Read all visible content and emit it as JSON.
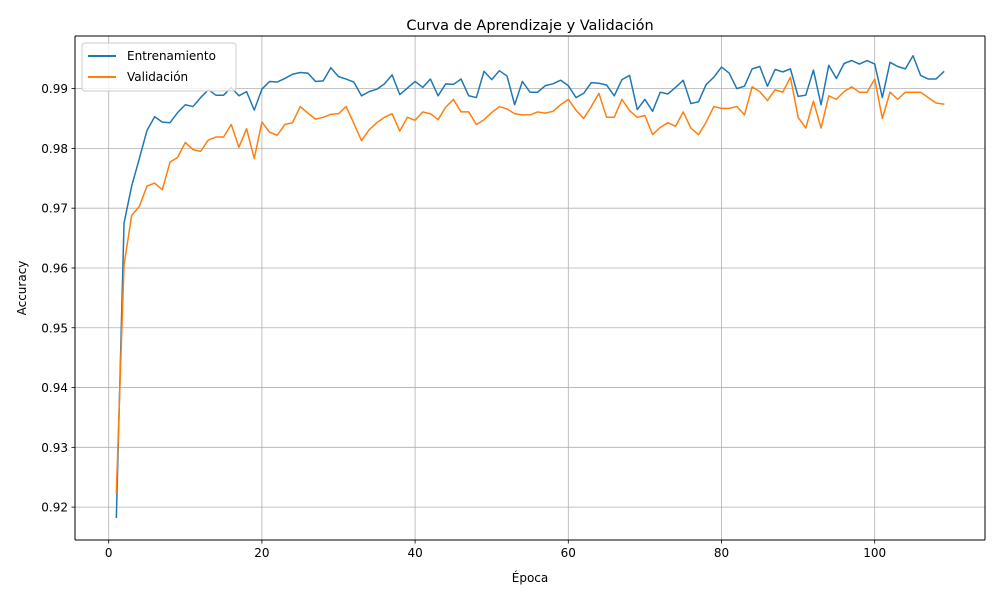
{
  "chart_data": {
    "type": "line",
    "title": "Curva de Aprendizaje y Validación",
    "xlabel": "Época",
    "ylabel": "Accuracy",
    "xlim": [
      -4.4,
      114.4
    ],
    "ylim": [
      0.9145,
      0.9988
    ],
    "xticks": [
      0,
      20,
      40,
      60,
      80,
      100
    ],
    "yticks": [
      0.92,
      0.93,
      0.94,
      0.95,
      0.96,
      0.97,
      0.98,
      0.99
    ],
    "ytick_labels": [
      "0.92",
      "0.93",
      "0.94",
      "0.95",
      "0.96",
      "0.97",
      "0.98",
      "0.99"
    ],
    "grid": true,
    "legend_position": "top-left",
    "x": [
      1,
      2,
      3,
      4,
      5,
      6,
      7,
      8,
      9,
      10,
      11,
      12,
      13,
      14,
      15,
      16,
      17,
      18,
      19,
      20,
      21,
      22,
      23,
      24,
      25,
      26,
      27,
      28,
      29,
      30,
      31,
      32,
      33,
      34,
      35,
      36,
      37,
      38,
      39,
      40,
      41,
      42,
      43,
      44,
      45,
      46,
      47,
      48,
      49,
      50,
      51,
      52,
      53,
      54,
      55,
      56,
      57,
      58,
      59,
      60,
      61,
      62,
      63,
      64,
      65,
      66,
      67,
      68,
      69,
      70,
      71,
      72,
      73,
      74,
      75,
      76,
      77,
      78,
      79,
      80,
      81,
      82,
      83,
      84,
      85,
      86,
      87,
      88,
      89,
      90,
      91,
      92,
      93,
      94,
      95,
      96,
      97,
      98,
      99,
      100,
      101,
      102,
      103,
      104,
      105,
      106,
      107,
      108,
      109
    ],
    "series": [
      {
        "name": "Entrenamiento",
        "color": "#1f77b4",
        "values": [
          0.9183,
          0.9675,
          0.9737,
          0.9783,
          0.983,
          0.9853,
          0.9844,
          0.9843,
          0.986,
          0.9873,
          0.987,
          0.9885,
          0.9898,
          0.9889,
          0.9889,
          0.9902,
          0.9888,
          0.9895,
          0.9864,
          0.9899,
          0.9912,
          0.9911,
          0.9917,
          0.9924,
          0.9927,
          0.9926,
          0.9912,
          0.9913,
          0.9935,
          0.992,
          0.9916,
          0.9911,
          0.9888,
          0.9895,
          0.9899,
          0.9908,
          0.9923,
          0.989,
          0.9901,
          0.9912,
          0.9902,
          0.9916,
          0.9888,
          0.9908,
          0.9907,
          0.9916,
          0.9888,
          0.9885,
          0.9929,
          0.9915,
          0.993,
          0.9921,
          0.9873,
          0.9912,
          0.9894,
          0.9894,
          0.9905,
          0.9908,
          0.9914,
          0.9905,
          0.9885,
          0.9892,
          0.991,
          0.9909,
          0.9906,
          0.9888,
          0.9915,
          0.9922,
          0.9865,
          0.9882,
          0.9862,
          0.9894,
          0.9891,
          0.9902,
          0.9914,
          0.9875,
          0.9878,
          0.9907,
          0.9919,
          0.9936,
          0.9926,
          0.99,
          0.9904,
          0.9933,
          0.9937,
          0.9904,
          0.9932,
          0.9928,
          0.9933,
          0.9887,
          0.9889,
          0.9931,
          0.9873,
          0.9939,
          0.9917,
          0.9942,
          0.9947,
          0.9941,
          0.9947,
          0.9941,
          0.9885,
          0.9944,
          0.9937,
          0.9933,
          0.9955,
          0.9922,
          0.9916,
          0.9916,
          0.9928
        ]
      },
      {
        "name": "Validación",
        "color": "#ff7f0e",
        "values": [
          0.9225,
          0.9605,
          0.9688,
          0.9703,
          0.9737,
          0.9742,
          0.9731,
          0.9777,
          0.9785,
          0.981,
          0.9798,
          0.9795,
          0.9814,
          0.9819,
          0.9819,
          0.984,
          0.9802,
          0.9833,
          0.9783,
          0.9844,
          0.9827,
          0.9822,
          0.984,
          0.9843,
          0.987,
          0.9859,
          0.9849,
          0.9852,
          0.9857,
          0.9858,
          0.987,
          0.9842,
          0.9813,
          0.9831,
          0.9843,
          0.9852,
          0.9858,
          0.9829,
          0.9852,
          0.9847,
          0.9861,
          0.9858,
          0.9848,
          0.9869,
          0.9882,
          0.9861,
          0.9861,
          0.984,
          0.9848,
          0.986,
          0.987,
          0.9866,
          0.9858,
          0.9856,
          0.9856,
          0.9861,
          0.9859,
          0.9862,
          0.9873,
          0.9882,
          0.9864,
          0.985,
          0.987,
          0.9892,
          0.9852,
          0.9852,
          0.9882,
          0.9863,
          0.9852,
          0.9855,
          0.9823,
          0.9835,
          0.9843,
          0.9837,
          0.9861,
          0.9834,
          0.9823,
          0.9844,
          0.987,
          0.9867,
          0.9867,
          0.987,
          0.9856,
          0.9903,
          0.9895,
          0.988,
          0.9898,
          0.9894,
          0.9919,
          0.9852,
          0.9834,
          0.9879,
          0.9834,
          0.9888,
          0.9882,
          0.9895,
          0.9903,
          0.9894,
          0.9894,
          0.9916,
          0.985,
          0.9894,
          0.9882,
          0.9894,
          0.9894,
          0.9894,
          0.9885,
          0.9876,
          0.9874
        ]
      }
    ]
  }
}
